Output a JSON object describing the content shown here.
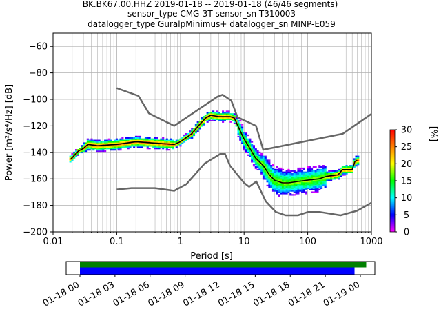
{
  "figure": {
    "title_lines": [
      "BK.BK67.00.HHZ   2019-01-18 -- 2019-01-18  (46/46 segments)",
      "sensor_type CMG-3T sensor_sn T310003",
      "datalogger_type GuralpMinimus+ datalogger_sn MINP-E059"
    ]
  },
  "chart_data": [
    {
      "type": "heatmap",
      "title": "BK.BK67.00.HHZ   2019-01-18 -- 2019-01-18  (46/46 segments)",
      "xlabel": "Period [s]",
      "ylabel": "Power [m²/s⁴/Hz] [dB]",
      "x_scale": "log",
      "xlim": [
        0.01,
        1000
      ],
      "ylim": [
        -200,
        -50
      ],
      "x_ticks": [
        "0.01",
        "0.1",
        "1",
        "10",
        "100",
        "1000"
      ],
      "y_ticks": [
        "−200",
        "−180",
        "−160",
        "−140",
        "−120",
        "−100",
        "−80",
        "−60"
      ],
      "grid": true,
      "colorbar": {
        "label": "[%]",
        "range": [
          0,
          30
        ],
        "ticks": [
          "0",
          "5",
          "10",
          "15",
          "20",
          "25",
          "30"
        ],
        "colors": [
          "#ff00ff",
          "#0000ff",
          "#00ffff",
          "#00ff00",
          "#ffff00",
          "#ff8000",
          "#ff0000"
        ]
      },
      "mode_curve": {
        "color": "#000000",
        "x": [
          0.019,
          0.025,
          0.03,
          0.035,
          0.05,
          0.1,
          0.2,
          0.4,
          0.8,
          1.0,
          1.5,
          2.0,
          2.5,
          3.0,
          4.0,
          5.0,
          6.0,
          7.0,
          8.0,
          10,
          12,
          15,
          20,
          25,
          30,
          40,
          50,
          70,
          100,
          150,
          200,
          300,
          350,
          400,
          500,
          550,
          600
        ],
        "y": [
          -145,
          -139,
          -137,
          -134,
          -135,
          -134,
          -132,
          -133,
          -134,
          -132,
          -126,
          -119,
          -114,
          -112,
          -113,
          -113,
          -113,
          -114,
          -120,
          -130,
          -136,
          -144,
          -150,
          -157,
          -161,
          -163,
          -163,
          -162,
          -161,
          -160,
          -158,
          -157,
          -153,
          -153,
          -153,
          -147,
          -146
        ]
      },
      "noise_models": {
        "color": "#666666",
        "high": {
          "x": [
            0.1,
            0.22,
            0.32,
            0.8,
            3.8,
            4.6,
            6.3,
            7.9,
            15.4,
            20,
            354.8,
            1000
          ],
          "y": [
            -91.5,
            -97.4,
            -110.5,
            -120,
            -98,
            -96.5,
            -101,
            -113.5,
            -120,
            -138,
            -126,
            -111
          ]
        },
        "low": {
          "x": [
            0.1,
            0.17,
            0.4,
            0.8,
            1.24,
            2.4,
            4.3,
            5.0,
            6.0,
            10,
            12,
            15.6,
            21.9,
            31.6,
            45,
            70,
            101,
            154,
            328,
            600,
            1000
          ],
          "y": [
            -168,
            -167,
            -167,
            -169,
            -164,
            -148.5,
            -141,
            -141,
            -150,
            -163,
            -166,
            -162,
            -177,
            -185,
            -187.5,
            -187.5,
            -185,
            -185,
            -187.5,
            -184,
            -178
          ]
        }
      }
    },
    {
      "type": "bar",
      "title": "",
      "x_ticks": [
        "01-18 00",
        "01-18 03",
        "01-18 06",
        "01-18 09",
        "01-18 12",
        "01-18 15",
        "01-18 18",
        "01-18 21",
        "01-19 00"
      ],
      "series": [
        {
          "color": "#008000",
          "start_hour": 0.0,
          "end_hour": 24.5
        },
        {
          "color": "#0000ff",
          "start_hour": 0.0,
          "end_hour": 23.5
        }
      ]
    }
  ]
}
